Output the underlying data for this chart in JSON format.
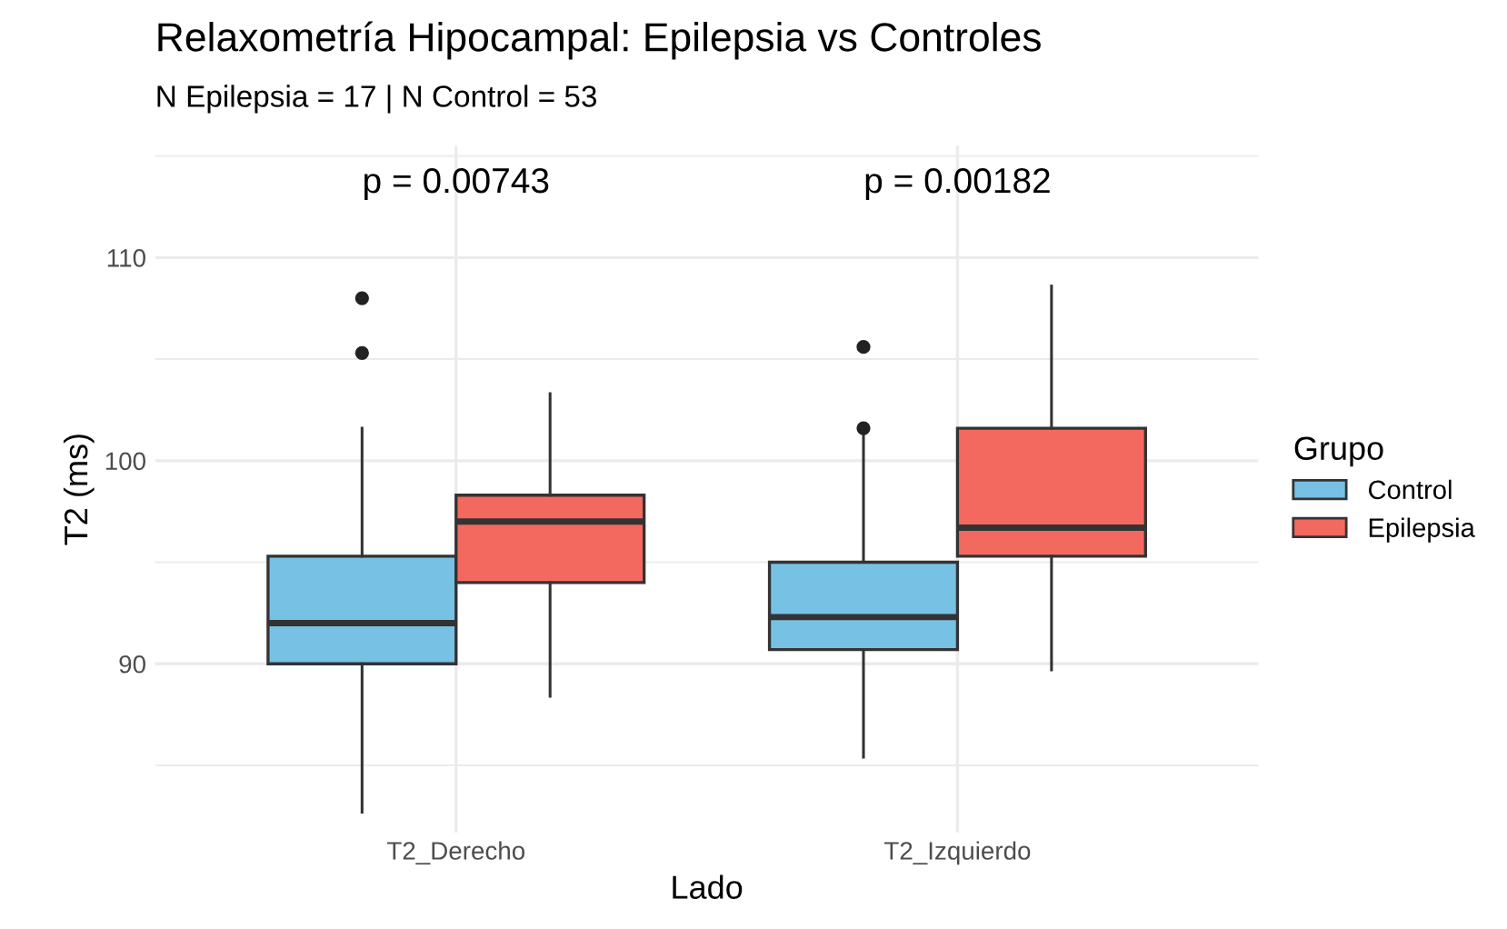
{
  "chart_data": {
    "type": "box",
    "title": "Relaxometría Hipocampal: Epilepsia vs Controles",
    "subtitle": "N Epilepsia = 17 | N Control = 53",
    "xlabel": "Lado",
    "ylabel": "T2 (ms)",
    "legend_title": "Grupo",
    "legend": "right",
    "grid": true,
    "categories": [
      "T2_Derecho",
      "T2_Izquierdo"
    ],
    "series": [
      {
        "name": "Control",
        "color": "#77c1e4",
        "boxes": [
          {
            "low": 82.7,
            "q1": 90.0,
            "median": 92.0,
            "q3": 95.3,
            "high": 101.6,
            "outliers": [
              105.3,
              108.0
            ]
          },
          {
            "low": 85.4,
            "q1": 90.7,
            "median": 92.3,
            "q3": 95.0,
            "high": 101.5,
            "outliers": [
              101.6,
              105.6
            ]
          }
        ]
      },
      {
        "name": "Epilepsia",
        "color": "#f4695f",
        "boxes": [
          {
            "low": 88.4,
            "q1": 94.0,
            "median": 97.0,
            "q3": 98.3,
            "high": 103.3
          },
          {
            "low": 89.7,
            "q1": 95.3,
            "median": 96.7,
            "q3": 101.6,
            "high": 108.6
          }
        ]
      }
    ],
    "ylim": [
      81.7,
      115.5
    ],
    "yticks": [
      90,
      100,
      110
    ],
    "annotations": [
      "p = 0.00743",
      "p = 0.00182"
    ]
  }
}
